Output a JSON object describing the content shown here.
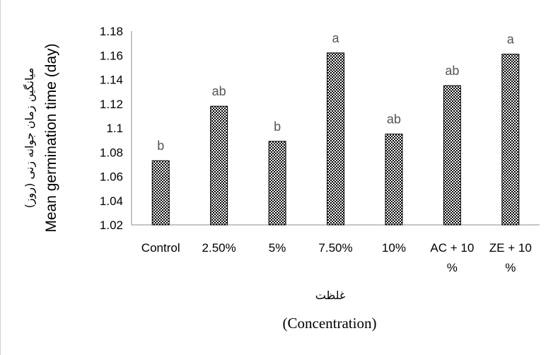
{
  "chart_data": {
    "type": "bar",
    "categories": [
      [
        "Control"
      ],
      [
        "2.50%"
      ],
      [
        "5%"
      ],
      [
        "7.50%"
      ],
      [
        "10%"
      ],
      [
        "AC + 10",
        "%"
      ],
      [
        "ZE + 10",
        "%"
      ]
    ],
    "values": [
      1.073,
      1.118,
      1.089,
      1.162,
      1.095,
      1.135,
      1.161
    ],
    "significance_letters": [
      "b",
      "ab",
      "b",
      "a",
      "ab",
      "ab",
      "a"
    ],
    "ylim": [
      1.02,
      1.18
    ],
    "yticks": [
      "1.02",
      "1.04",
      "1.06",
      "1.08",
      "1.1",
      "1.12",
      "1.14",
      "1.16",
      "1.18"
    ],
    "ylabel_fa": "میانگین زمان جوانه زنی (روز)",
    "ylabel_en": "Mean germination time (day)",
    "xlabel_fa": "غلظت",
    "xlabel_en": "(Concentration)",
    "grid": false,
    "bar_pattern": "checkerboard black/white"
  }
}
